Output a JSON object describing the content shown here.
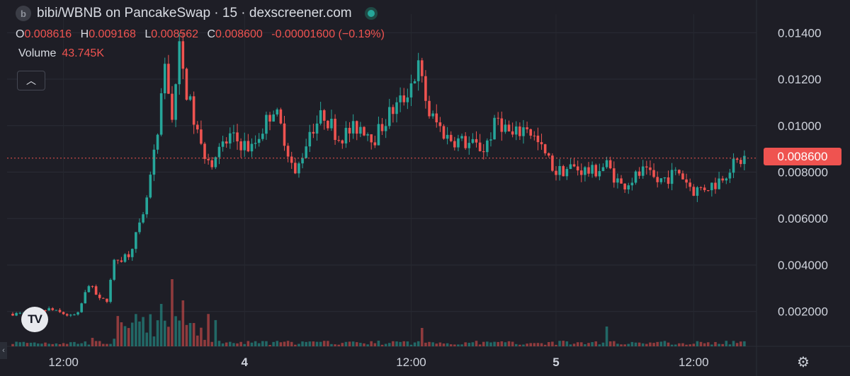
{
  "header": {
    "logo_letter": "b",
    "title": "bibi/WBNB on PancakeSwap · 15 · dexscreener.com"
  },
  "ohlc": {
    "o_label": "O",
    "o": "0.008616",
    "h_label": "H",
    "h": "0.009168",
    "l_label": "L",
    "l": "0.008562",
    "c_label": "C",
    "c": "0.008600",
    "change": "-0.00001600 (−0.19%)"
  },
  "volume": {
    "label": "Volume",
    "value": "43.745K"
  },
  "collapse_icon": "chevron-up-icon",
  "tv_logo_text": "TV",
  "last_price_label": "0.008600",
  "colors": {
    "up": "#26a69a",
    "down": "#ef5350",
    "background": "#1e1e26",
    "grid": "#2b2d36",
    "text": "#cfd3dc"
  },
  "chart_data": {
    "type": "candlestick",
    "y_ticks": [
      "0.01400",
      "0.01200",
      "0.01000",
      "0.008000",
      "0.006000",
      "0.004000",
      "0.002000"
    ],
    "y_tick_values": [
      0.014,
      0.012,
      0.01,
      0.008,
      0.006,
      0.004,
      0.002
    ],
    "x_ticks": [
      "12:00",
      "4",
      "12:00",
      "5",
      "12:00"
    ],
    "ylim": [
      0.0005,
      0.0148
    ],
    "last_price": 0.0086,
    "grid": true,
    "anchors": [
      [
        0,
        0.0019
      ],
      [
        6,
        0.0019
      ],
      [
        10,
        0.0021
      ],
      [
        16,
        0.0018
      ],
      [
        18,
        0.0019
      ],
      [
        21,
        0.0032
      ],
      [
        24,
        0.0025
      ],
      [
        26,
        0.0025
      ],
      [
        28,
        0.0041
      ],
      [
        32,
        0.0045
      ],
      [
        36,
        0.006
      ],
      [
        40,
        0.0095
      ],
      [
        42,
        0.0125
      ],
      [
        44,
        0.0105
      ],
      [
        46,
        0.0132
      ],
      [
        48,
        0.0115
      ],
      [
        52,
        0.009
      ],
      [
        55,
        0.0085
      ],
      [
        60,
        0.0095
      ],
      [
        66,
        0.009
      ],
      [
        72,
        0.0108
      ],
      [
        75,
        0.0095
      ],
      [
        78,
        0.0078
      ],
      [
        82,
        0.0098
      ],
      [
        86,
        0.0105
      ],
      [
        90,
        0.0095
      ],
      [
        96,
        0.01
      ],
      [
        100,
        0.0095
      ],
      [
        104,
        0.0105
      ],
      [
        108,
        0.0112
      ],
      [
        112,
        0.0125
      ],
      [
        115,
        0.0105
      ],
      [
        120,
        0.0095
      ],
      [
        126,
        0.0092
      ],
      [
        130,
        0.009
      ],
      [
        134,
        0.0103
      ],
      [
        138,
        0.0095
      ],
      [
        142,
        0.01
      ],
      [
        145,
        0.0092
      ],
      [
        150,
        0.008
      ],
      [
        154,
        0.0082
      ],
      [
        160,
        0.008
      ],
      [
        164,
        0.0083
      ],
      [
        168,
        0.0074
      ],
      [
        174,
        0.008
      ],
      [
        178,
        0.0076
      ],
      [
        184,
        0.008
      ],
      [
        188,
        0.0072
      ],
      [
        194,
        0.0075
      ],
      [
        198,
        0.0082
      ],
      [
        202,
        0.0086
      ]
    ],
    "count": 203
  }
}
